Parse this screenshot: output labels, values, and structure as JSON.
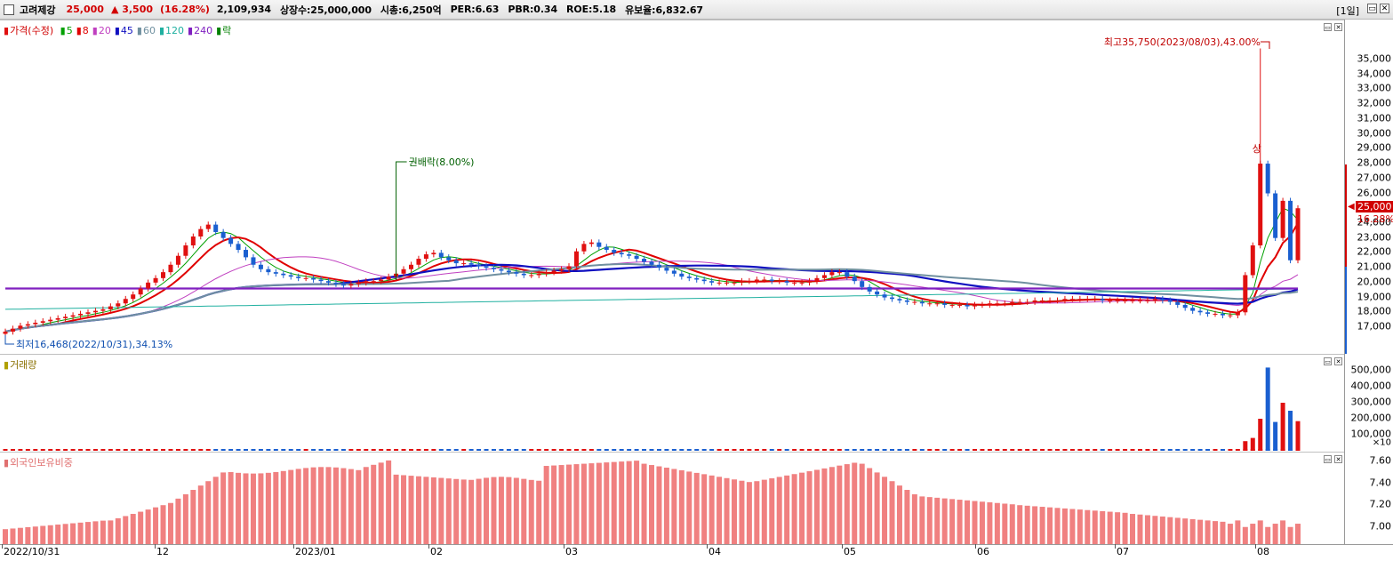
{
  "header": {
    "stock_name": "고려제강",
    "price": "25,000",
    "change": "▲ 3,500",
    "change_pct": "(16.28%)",
    "volume": "2,109,934",
    "listed_shares": "상장수:25,000,000",
    "market_cap": "시총:6,250억",
    "per": "PER:6.63",
    "pbr": "PBR:0.34",
    "roe": "ROE:5.18",
    "float_ratio": "유보율:6,832.67",
    "period": "[1일]"
  },
  "price_legend": {
    "label": "가격(수정)",
    "ma": [
      {
        "label": "5",
        "color": "#00a000"
      },
      {
        "label": "8",
        "color": "#e00000"
      },
      {
        "label": "20",
        "color": "#c040c0"
      },
      {
        "label": "45",
        "color": "#1010c0"
      },
      {
        "label": "60",
        "color": "#7090a0"
      },
      {
        "label": "120",
        "color": "#20b0a0"
      },
      {
        "label": "240",
        "color": "#8020c0"
      },
      {
        "label": "락",
        "color": "#008000"
      }
    ]
  },
  "annotations": {
    "high": "최고35,750(2023/08/03),43.00%",
    "low": "최저16,468(2022/10/31),34.13%",
    "rights": "권배락(8.00%)",
    "limit_up": "상",
    "current_price_tag": "25,000",
    "current_pct_tag": "16.28%"
  },
  "volume_legend": {
    "label": "거래량",
    "multiplier": "×10"
  },
  "foreign_legend": {
    "label": "외국인보유비중"
  },
  "colors": {
    "up": "#e01010",
    "down": "#1a5fd0",
    "foreign_bar": "#f08080"
  },
  "chart_data": [
    {
      "type": "candlestick",
      "title": "가격(수정)",
      "ylim": [
        16468,
        35750
      ],
      "y_ticks": [
        "35,000",
        "34,000",
        "33,000",
        "32,000",
        "31,000",
        "30,000",
        "29,000",
        "28,000",
        "27,000",
        "26,000",
        "25,000",
        "24,000",
        "23,000",
        "22,000",
        "21,000",
        "20,000",
        "19,000",
        "18,000",
        "17,000"
      ],
      "x_labels": [
        "2022/10/31",
        "12",
        "2023/01",
        "02",
        "03",
        "04",
        "05",
        "06",
        "07",
        "08"
      ],
      "close": [
        16700,
        16900,
        17100,
        17200,
        17300,
        17400,
        17500,
        17600,
        17700,
        17800,
        17900,
        18000,
        18100,
        18200,
        18400,
        18600,
        18900,
        19200,
        19600,
        20000,
        20300,
        20700,
        21200,
        21800,
        22500,
        23100,
        23600,
        23900,
        23400,
        23000,
        22600,
        22200,
        21700,
        21200,
        20900,
        20700,
        20600,
        20500,
        20400,
        20300,
        20300,
        20200,
        20100,
        20000,
        19900,
        19800,
        19900,
        20000,
        20100,
        20100,
        20200,
        20400,
        20600,
        20900,
        21200,
        21600,
        21900,
        22000,
        21700,
        21500,
        21300,
        21300,
        21200,
        21100,
        21000,
        20900,
        20800,
        20700,
        20600,
        20500,
        20500,
        20600,
        20700,
        20800,
        20900,
        21100,
        22100,
        22600,
        22700,
        22400,
        22200,
        22000,
        21900,
        21800,
        21600,
        21400,
        21200,
        21000,
        20800,
        20600,
        20400,
        20300,
        20200,
        20100,
        20000,
        20000,
        20000,
        20000,
        20100,
        20100,
        20200,
        20200,
        20100,
        20100,
        20000,
        20000,
        20000,
        20100,
        20300,
        20500,
        20700,
        20700,
        20400,
        20100,
        19700,
        19400,
        19200,
        19000,
        18900,
        18800,
        18700,
        18700,
        18600,
        18600,
        18600,
        18500,
        18500,
        18500,
        18400,
        18500,
        18500,
        18600,
        18600,
        18600,
        18700,
        18700,
        18700,
        18800,
        18800,
        18800,
        18800,
        18900,
        18900,
        18900,
        18900,
        18900,
        18800,
        18800,
        18800,
        18800,
        18800,
        18800,
        18800,
        18900,
        18800,
        18700,
        18500,
        18300,
        18100,
        18000,
        17900,
        17900,
        17800,
        17800,
        18000,
        20500,
        22500,
        28000,
        26000,
        23000,
        25500,
        21500,
        25000
      ],
      "volume_x10_max": 500000,
      "volume_ticks": [
        "500,000",
        "400,000",
        "300,000",
        "200,000",
        "100,000"
      ],
      "volume_recent": [
        60000,
        80000,
        200000,
        520000,
        180000,
        300000,
        250000,
        185000
      ]
    },
    {
      "type": "bar",
      "title": "외국인보유비중",
      "ylim": [
        6.9,
        7.7
      ],
      "y_ticks": [
        "7.60",
        "7.40",
        "7.20",
        "7.00"
      ],
      "series_desc": "foreign ownership %"
    }
  ]
}
